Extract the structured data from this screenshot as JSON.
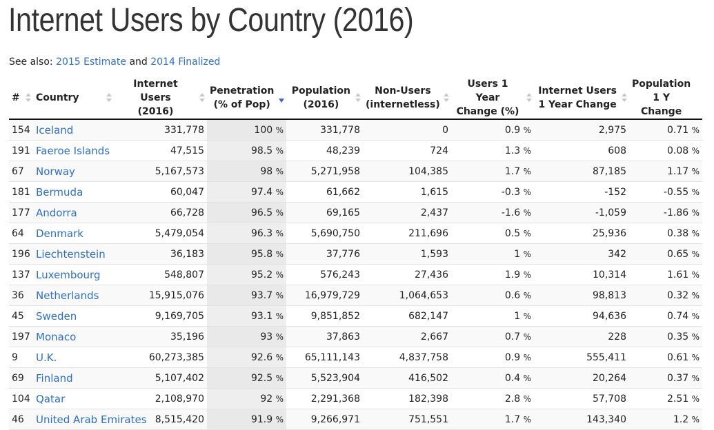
{
  "title": "Internet Users by Country (2016)",
  "see_also": {
    "prefix": "See also:",
    "link1": "2015 Estimate",
    "middle": "and",
    "link2": "2014 Finalized"
  },
  "columns": [
    {
      "l1": "#",
      "l2": ""
    },
    {
      "l1": "Country",
      "l2": ""
    },
    {
      "l1": "Internet Users",
      "l2": "(2016)"
    },
    {
      "l1": "Penetration",
      "l2": "(% of Pop)"
    },
    {
      "l1": "Population",
      "l2": "(2016)"
    },
    {
      "l1": "Non-Users",
      "l2": "(internetless)"
    },
    {
      "l1": "Users 1 Year",
      "l2": "Change (%)"
    },
    {
      "l1": "Internet Users",
      "l2": "1 Year Change"
    },
    {
      "l1": "Population",
      "l2": "1 Y Change"
    }
  ],
  "rows": [
    {
      "rank": "154",
      "country": "Iceland",
      "users": "331,778",
      "pen": "100",
      "pop": "331,778",
      "non": "0",
      "uchg": "0.9",
      "uabs": "2,975",
      "pchg": "0.71"
    },
    {
      "rank": "191",
      "country": "Faeroe Islands",
      "users": "47,515",
      "pen": "98.5",
      "pop": "48,239",
      "non": "724",
      "uchg": "1.3",
      "uabs": "608",
      "pchg": "0.08"
    },
    {
      "rank": "67",
      "country": "Norway",
      "users": "5,167,573",
      "pen": "98",
      "pop": "5,271,958",
      "non": "104,385",
      "uchg": "1.7",
      "uabs": "87,185",
      "pchg": "1.17"
    },
    {
      "rank": "181",
      "country": "Bermuda",
      "users": "60,047",
      "pen": "97.4",
      "pop": "61,662",
      "non": "1,615",
      "uchg": "-0.3",
      "uabs": "-152",
      "pchg": "-0.55"
    },
    {
      "rank": "177",
      "country": "Andorra",
      "users": "66,728",
      "pen": "96.5",
      "pop": "69,165",
      "non": "2,437",
      "uchg": "-1.6",
      "uabs": "-1,059",
      "pchg": "-1.86"
    },
    {
      "rank": "64",
      "country": "Denmark",
      "users": "5,479,054",
      "pen": "96.3",
      "pop": "5,690,750",
      "non": "211,696",
      "uchg": "0.5",
      "uabs": "25,936",
      "pchg": "0.38"
    },
    {
      "rank": "196",
      "country": "Liechtenstein",
      "users": "36,183",
      "pen": "95.8",
      "pop": "37,776",
      "non": "1,593",
      "uchg": "1",
      "uabs": "342",
      "pchg": "0.65"
    },
    {
      "rank": "137",
      "country": "Luxembourg",
      "users": "548,807",
      "pen": "95.2",
      "pop": "576,243",
      "non": "27,436",
      "uchg": "1.9",
      "uabs": "10,314",
      "pchg": "1.61"
    },
    {
      "rank": "36",
      "country": "Netherlands",
      "users": "15,915,076",
      "pen": "93.7",
      "pop": "16,979,729",
      "non": "1,064,653",
      "uchg": "0.6",
      "uabs": "98,813",
      "pchg": "0.32"
    },
    {
      "rank": "45",
      "country": "Sweden",
      "users": "9,169,705",
      "pen": "93.1",
      "pop": "9,851,852",
      "non": "682,147",
      "uchg": "1",
      "uabs": "94,636",
      "pchg": "0.74"
    },
    {
      "rank": "197",
      "country": "Monaco",
      "users": "35,196",
      "pen": "93",
      "pop": "37,863",
      "non": "2,667",
      "uchg": "0.7",
      "uabs": "228",
      "pchg": "0.35"
    },
    {
      "rank": "9",
      "country": "U.K.",
      "users": "60,273,385",
      "pen": "92.6",
      "pop": "65,111,143",
      "non": "4,837,758",
      "uchg": "0.9",
      "uabs": "555,411",
      "pchg": "0.61"
    },
    {
      "rank": "69",
      "country": "Finland",
      "users": "5,107,402",
      "pen": "92.5",
      "pop": "5,523,904",
      "non": "416,502",
      "uchg": "0.4",
      "uabs": "20,264",
      "pchg": "0.37"
    },
    {
      "rank": "104",
      "country": "Qatar",
      "users": "2,108,970",
      "pen": "92",
      "pop": "2,291,368",
      "non": "182,398",
      "uchg": "2.8",
      "uabs": "57,708",
      "pchg": "2.51"
    },
    {
      "rank": "46",
      "country": "United Arab Emirates",
      "users": "8,515,420",
      "pen": "91.9",
      "pop": "9,266,971",
      "non": "751,551",
      "uchg": "1.7",
      "uabs": "143,340",
      "pchg": "1.2"
    }
  ],
  "percent_unit": "%",
  "sorted_column": "Penetration (% of Pop)",
  "sort_direction": "descending",
  "colors": {
    "link": "#2e6fc7",
    "sort_active": "#4a5fd0"
  }
}
